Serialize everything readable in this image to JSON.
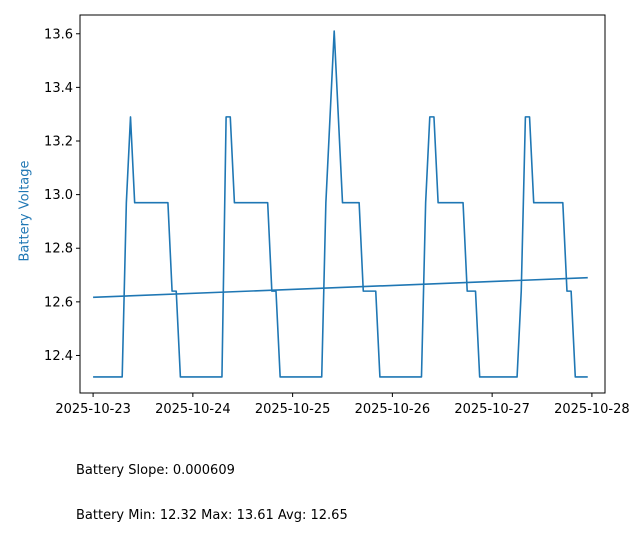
{
  "chart_data": {
    "type": "line",
    "xlabel": "",
    "ylabel": "Battery Voltage",
    "ylabel_color": "#1f77b4",
    "line_color": "#1f77b4",
    "grid": false,
    "xlim": [
      "2025-10-22T20:51",
      "2025-10-28T03:09"
    ],
    "ylim": [
      12.26,
      13.67
    ],
    "x_ticks": [
      "2025-10-23",
      "2025-10-24",
      "2025-10-25",
      "2025-10-26",
      "2025-10-27",
      "2025-10-28"
    ],
    "y_ticks": [
      "12.4",
      "12.6",
      "12.8",
      "13.0",
      "13.2",
      "13.4",
      "13.6"
    ],
    "series": [
      {
        "x": [
          "2025-10-23T00:00",
          "2025-10-23T07:00",
          "2025-10-23T08:00",
          "2025-10-23T09:00",
          "2025-10-23T10:00",
          "2025-10-23T18:00",
          "2025-10-23T19:00",
          "2025-10-23T20:00",
          "2025-10-23T21:00",
          "2025-10-24T07:00",
          "2025-10-24T08:00",
          "2025-10-24T09:00",
          "2025-10-24T10:00",
          "2025-10-24T18:00",
          "2025-10-24T19:00",
          "2025-10-24T20:00",
          "2025-10-24T21:00",
          "2025-10-25T07:00",
          "2025-10-25T08:00",
          "2025-10-25T10:00",
          "2025-10-25T12:00",
          "2025-10-25T16:00",
          "2025-10-25T17:00",
          "2025-10-25T20:00",
          "2025-10-25T21:00",
          "2025-10-26T07:00",
          "2025-10-26T08:00",
          "2025-10-26T09:00",
          "2025-10-26T10:00",
          "2025-10-26T11:00",
          "2025-10-26T17:00",
          "2025-10-26T18:00",
          "2025-10-26T20:00",
          "2025-10-26T21:00",
          "2025-10-27T06:00",
          "2025-10-27T07:00",
          "2025-10-27T08:00",
          "2025-10-27T09:00",
          "2025-10-27T10:00",
          "2025-10-27T17:00",
          "2025-10-27T18:00",
          "2025-10-27T19:00",
          "2025-10-27T20:00",
          "2025-10-27T23:00"
        ],
        "y": [
          12.32,
          12.32,
          12.97,
          13.29,
          12.97,
          12.97,
          12.64,
          12.64,
          12.32,
          12.32,
          13.29,
          13.29,
          12.97,
          12.97,
          12.64,
          12.64,
          12.32,
          12.32,
          12.97,
          13.61,
          12.97,
          12.97,
          12.64,
          12.64,
          12.32,
          12.32,
          12.97,
          13.29,
          13.29,
          12.97,
          12.97,
          12.64,
          12.64,
          12.32,
          12.32,
          12.64,
          13.29,
          13.29,
          12.97,
          12.97,
          12.64,
          12.64,
          12.32,
          12.32
        ]
      },
      {
        "type": "trend",
        "x": [
          "2025-10-23T00:00",
          "2025-10-27T23:00"
        ],
        "y": [
          12.617,
          12.69
        ]
      }
    ]
  },
  "stats": {
    "slope_line": "Battery Slope: 0.000609",
    "range_line": "Battery Min: 12.32 Max: 13.61 Avg: 12.65"
  }
}
